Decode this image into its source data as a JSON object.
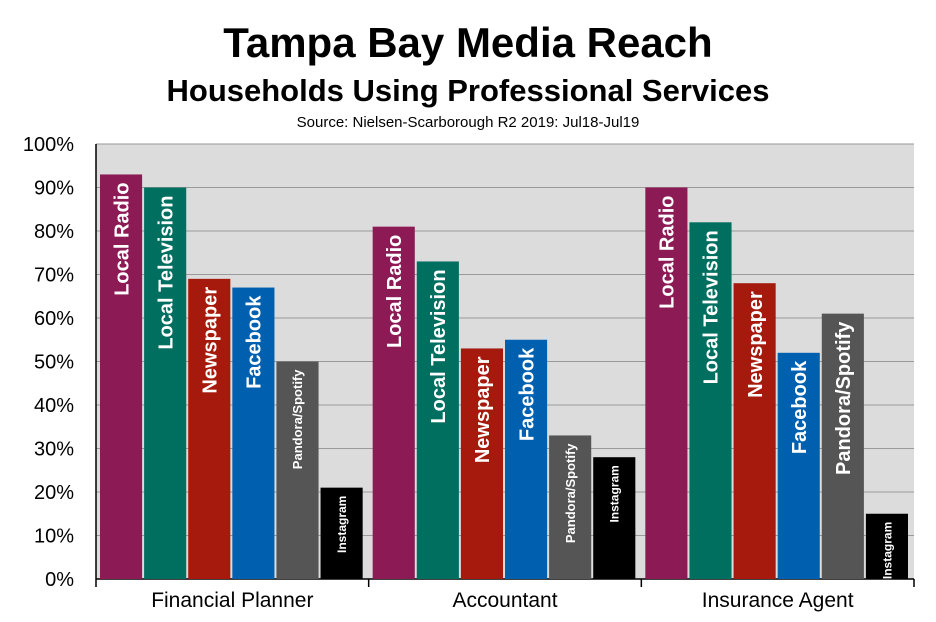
{
  "header": {
    "title": "Tampa Bay Media Reach",
    "subtitle": "Households Using Professional Services",
    "source": "Source: Nielsen-Scarborough R2 2019: Jul18-Jul19"
  },
  "chart_data": {
    "type": "bar",
    "categories": [
      "Financial Planner",
      "Accountant",
      "Insurance Agent"
    ],
    "series": [
      {
        "name": "Local Radio",
        "color": "#8B1A55",
        "values": [
          93,
          81,
          90
        ]
      },
      {
        "name": "Local Television",
        "color": "#006F60",
        "values": [
          90,
          73,
          82
        ]
      },
      {
        "name": "Newspaper",
        "color": "#A51A0D",
        "values": [
          69,
          53,
          68
        ]
      },
      {
        "name": "Facebook",
        "color": "#0060B0",
        "values": [
          67,
          55,
          52
        ]
      },
      {
        "name": "Pandora/Spotify",
        "color": "#555555",
        "values": [
          50,
          33,
          61
        ]
      },
      {
        "name": "Instagram",
        "color": "#000000",
        "values": [
          21,
          28,
          15
        ]
      }
    ],
    "ylim": [
      0,
      100
    ],
    "yticks": [
      "0%",
      "10%",
      "20%",
      "30%",
      "40%",
      "50%",
      "60%",
      "70%",
      "80%",
      "90%",
      "100%"
    ],
    "grid": true,
    "plot_background": "#DCDCDC"
  }
}
